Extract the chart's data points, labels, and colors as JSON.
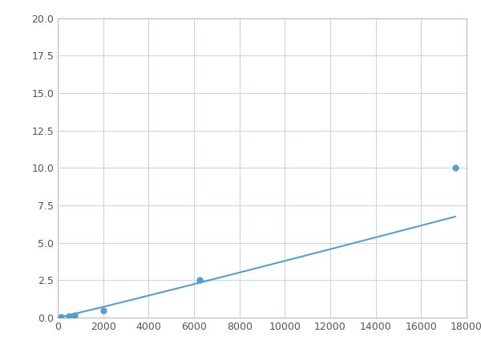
{
  "x": [
    125,
    500,
    750,
    2000,
    6250,
    17500
  ],
  "y": [
    0.08,
    0.12,
    0.18,
    0.5,
    2.5,
    10.0
  ],
  "line_color": "#5b9dc8",
  "marker_color": "#5b9dc8",
  "marker_size": 5,
  "line_width": 1.5,
  "xlim": [
    0,
    18000
  ],
  "ylim": [
    0,
    20.0
  ],
  "xticks": [
    0,
    2000,
    4000,
    6000,
    8000,
    10000,
    12000,
    14000,
    16000,
    18000
  ],
  "yticks": [
    0.0,
    2.5,
    5.0,
    7.5,
    10.0,
    12.5,
    15.0,
    17.5,
    20.0
  ],
  "grid_color": "#c8d8e8",
  "background_color": "#ffffff",
  "figure_facecolor": "#ffffff",
  "spine_color": "#bbbbbb",
  "tick_label_color": "#555555",
  "tick_label_size": 9
}
